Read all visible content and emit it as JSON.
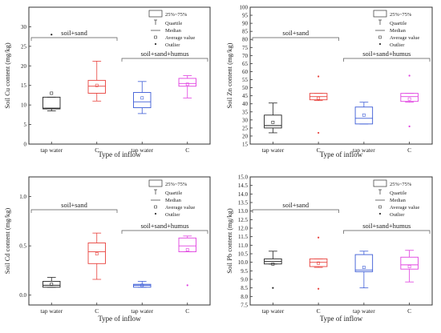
{
  "chart_data": [
    {
      "type": "box",
      "ylabel": "Soil Cu content (mg/kg)",
      "xlabel": "Type of inflow",
      "categories": [
        "tap water",
        "C",
        "tap water",
        "C"
      ],
      "ylim": [
        0,
        35
      ],
      "yticks": [
        0,
        5,
        10,
        15,
        20,
        25,
        30
      ],
      "groups": [
        {
          "label": "soil+sand",
          "span": [
            0,
            1
          ]
        },
        {
          "label": "soil+sand+humus",
          "span": [
            2,
            3
          ]
        }
      ],
      "boxes": [
        {
          "min": 8.5,
          "q1": 9.0,
          "median": 9.2,
          "q3": 12.0,
          "max": 12.0,
          "mean": 13.0,
          "outliers": [
            28.0
          ],
          "color": "#222222"
        },
        {
          "min": 11.0,
          "q1": 13.0,
          "median": 14.8,
          "q3": 16.3,
          "max": 21.2,
          "mean": 15.0,
          "outliers": [],
          "color": "#e8413c"
        },
        {
          "min": 7.8,
          "q1": 9.3,
          "median": 10.8,
          "q3": 13.2,
          "max": 16.0,
          "mean": 11.8,
          "outliers": [],
          "color": "#3b5bd6"
        },
        {
          "min": 11.8,
          "q1": 14.8,
          "median": 15.5,
          "q3": 16.8,
          "max": 17.5,
          "mean": 15.3,
          "outliers": [],
          "color": "#e040e0"
        }
      ]
    },
    {
      "type": "box",
      "ylabel": "Soil Zn content (mg/kg)",
      "xlabel": "Type of inflow",
      "categories": [
        "tap water",
        "C",
        "tap water",
        "C"
      ],
      "ylim": [
        15,
        100
      ],
      "yticks": [
        15,
        20,
        25,
        30,
        35,
        40,
        45,
        50,
        55,
        60,
        65,
        70,
        75,
        80,
        85,
        90,
        95,
        100
      ],
      "groups": [
        {
          "label": "soil+sand",
          "span": [
            0,
            1
          ]
        },
        {
          "label": "soil+sand+humus",
          "span": [
            2,
            3
          ]
        }
      ],
      "boxes": [
        {
          "min": 22.0,
          "q1": 25.0,
          "median": 26.5,
          "q3": 33.0,
          "max": 40.5,
          "mean": 28.5,
          "outliers": [],
          "color": "#222222"
        },
        {
          "min": 42.0,
          "q1": 42.5,
          "median": 44.5,
          "q3": 46.5,
          "max": 46.5,
          "mean": 43.5,
          "outliers": [
            22.0,
            57.0
          ],
          "color": "#e8413c"
        },
        {
          "min": 27.5,
          "q1": 27.5,
          "median": 31.0,
          "q3": 38.0,
          "max": 41.0,
          "mean": 33.0,
          "outliers": [],
          "color": "#3b5bd6"
        },
        {
          "min": 41.0,
          "q1": 41.5,
          "median": 44.5,
          "q3": 46.5,
          "max": 46.5,
          "mean": 43.0,
          "outliers": [
            26.0,
            57.5
          ],
          "color": "#e040e0"
        }
      ]
    },
    {
      "type": "box",
      "ylabel": "Soil Cd content (mg/kg)",
      "xlabel": "Type of inflow",
      "categories": [
        "tap water",
        "C",
        "tap water",
        "C"
      ],
      "ylim": [
        -0.1,
        1.2
      ],
      "yticks": [
        0.0,
        0.5,
        1.0
      ],
      "groups": [
        {
          "label": "soil+sand",
          "span": [
            0,
            1
          ]
        },
        {
          "label": "soil+sand+humus",
          "span": [
            2,
            3
          ]
        }
      ],
      "boxes": [
        {
          "min": 0.08,
          "q1": 0.08,
          "median": 0.1,
          "q3": 0.14,
          "max": 0.18,
          "mean": 0.11,
          "outliers": [],
          "color": "#222222"
        },
        {
          "min": 0.16,
          "q1": 0.32,
          "median": 0.44,
          "q3": 0.53,
          "max": 0.63,
          "mean": 0.42,
          "outliers": [],
          "color": "#e8413c"
        },
        {
          "min": 0.08,
          "q1": 0.08,
          "median": 0.1,
          "q3": 0.11,
          "max": 0.14,
          "mean": 0.1,
          "outliers": [],
          "color": "#3b5bd6"
        },
        {
          "min": 0.44,
          "q1": 0.44,
          "median": 0.5,
          "q3": 0.58,
          "max": 0.6,
          "mean": 0.46,
          "outliers": [
            0.1
          ],
          "color": "#e040e0"
        }
      ]
    },
    {
      "type": "box",
      "ylabel": "Soil Pb content (mg/kg)",
      "xlabel": "Type of inflow",
      "categories": [
        "tap water",
        "C",
        "tap water",
        "C"
      ],
      "ylim": [
        7.5,
        15.0
      ],
      "yticks": [
        7.5,
        8.0,
        8.5,
        9.0,
        9.5,
        10.0,
        10.5,
        11.0,
        11.5,
        12.0,
        12.5,
        13.0,
        13.5,
        14.0,
        14.5,
        15.0
      ],
      "groups": [
        {
          "label": "soil+sand",
          "span": [
            0,
            1
          ]
        },
        {
          "label": "soil+sand+humus",
          "span": [
            2,
            3
          ]
        }
      ],
      "boxes": [
        {
          "min": 9.9,
          "q1": 9.9,
          "median": 10.05,
          "q3": 10.2,
          "max": 10.65,
          "mean": 9.9,
          "outliers": [
            8.5
          ],
          "color": "#222222"
        },
        {
          "min": 9.7,
          "q1": 9.75,
          "median": 10.0,
          "q3": 10.2,
          "max": 10.2,
          "mean": 9.95,
          "outliers": [
            11.45,
            8.45
          ],
          "color": "#e8413c"
        },
        {
          "min": 8.5,
          "q1": 9.45,
          "median": 9.55,
          "q3": 10.45,
          "max": 10.65,
          "mean": 9.7,
          "outliers": [],
          "color": "#3b5bd6"
        },
        {
          "min": 8.85,
          "q1": 9.6,
          "median": 9.85,
          "q3": 10.3,
          "max": 10.7,
          "mean": 9.75,
          "outliers": [],
          "color": "#e040e0"
        }
      ]
    }
  ],
  "legend": {
    "box_label": "25%~75%",
    "quartile_label": "Quartile",
    "median_label": "Median",
    "average_label": "Average value",
    "outlier_label": "Outlier"
  }
}
